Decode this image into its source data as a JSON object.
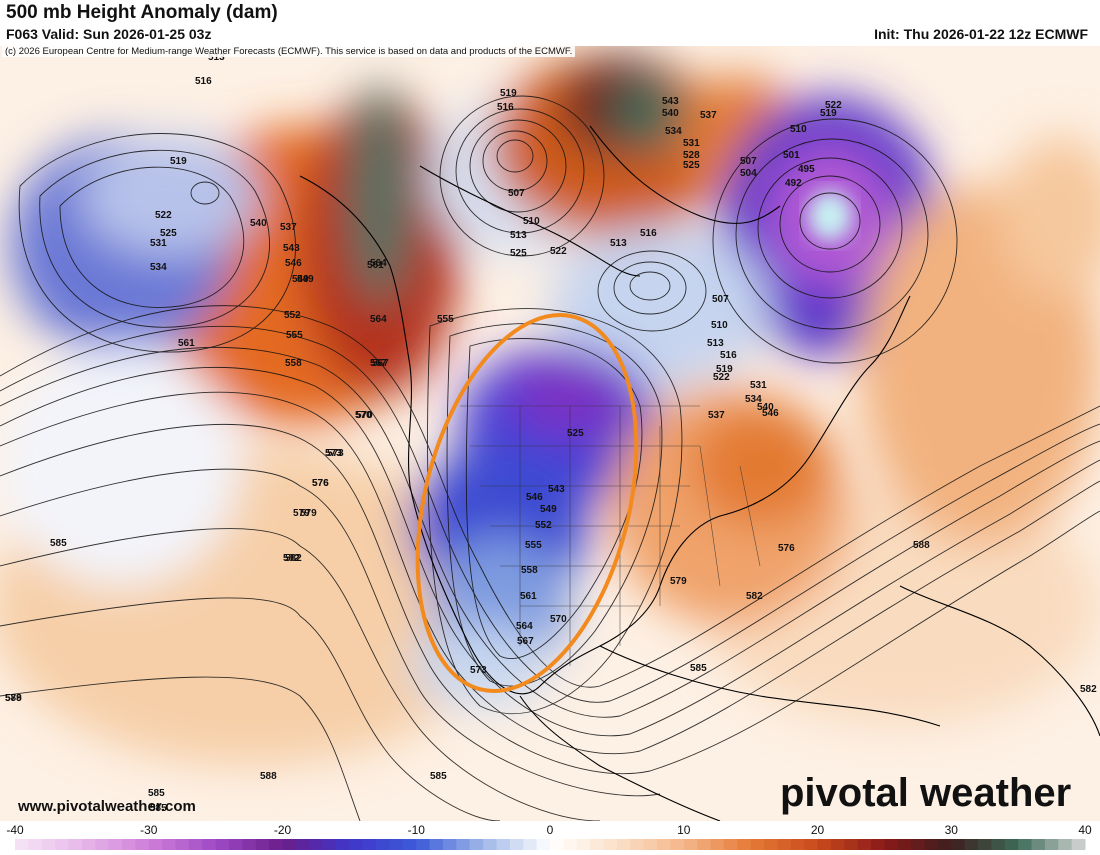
{
  "header": {
    "title": "500 mb Height Anomaly (dam)",
    "valid": "F063 Valid: Sun 2026-01-25 03z",
    "init": "Init: Thu 2026-01-22 12z ECMWF",
    "copyright": "(c) 2026 European Centre for Medium-range Weather Forecasts (ECMWF). This service is based on data and products of the ECMWF."
  },
  "footer": {
    "website": "www.pivotalweather.com",
    "logo_text": "pivotal weather"
  },
  "colorbar": {
    "ticks": [
      "-40",
      "-30",
      "-20",
      "-10",
      "0",
      "10",
      "20",
      "30",
      "40"
    ],
    "min": -40,
    "max": 40,
    "unit": "dam"
  },
  "contour_labels": [
    "513",
    "516",
    "519",
    "522",
    "525",
    "531",
    "534",
    "540",
    "537",
    "543",
    "546",
    "549",
    "552",
    "555",
    "558",
    "561",
    "564",
    "567",
    "570",
    "573",
    "576",
    "579",
    "582",
    "585",
    "588",
    "519",
    "516",
    "507",
    "510",
    "513",
    "525",
    "522",
    "513",
    "516",
    "543",
    "540",
    "537",
    "534",
    "531",
    "528",
    "525",
    "507",
    "504",
    "501",
    "495",
    "492",
    "510",
    "522",
    "519",
    "549",
    "555",
    "561",
    "564",
    "567",
    "570",
    "573",
    "576",
    "579",
    "582",
    "507",
    "510",
    "513",
    "516",
    "519",
    "522",
    "531",
    "534",
    "540",
    "546",
    "537",
    "525",
    "543",
    "546",
    "549",
    "552",
    "555",
    "558",
    "561",
    "564",
    "567",
    "570",
    "573",
    "576",
    "579",
    "582",
    "585",
    "588",
    "582",
    "579",
    "585",
    "588",
    "585",
    "585",
    "585",
    "588"
  ],
  "annotation": {
    "type": "ellipse-highlight",
    "color": "#f28a1e"
  },
  "colors": {
    "negative_deep": "#7a1fb0",
    "negative": "#3a3fd0",
    "negative_light": "#c7d7ef",
    "neutral": "#ffffff",
    "positive_light": "#f7d3b0",
    "positive": "#e0702a",
    "positive_deep": "#8a1a1a",
    "positive_extreme": "#2f6b55"
  }
}
